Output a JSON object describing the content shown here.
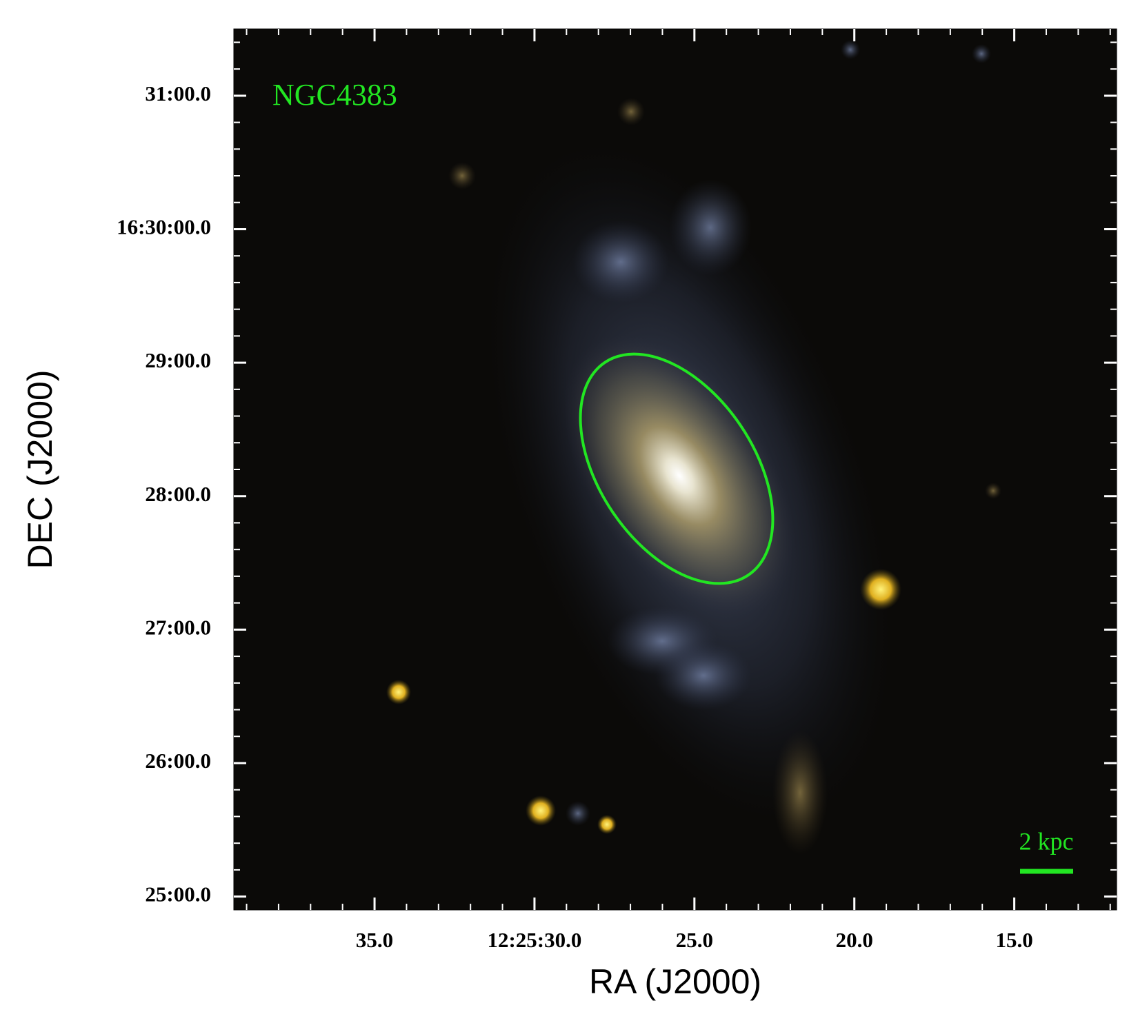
{
  "chart_data": {
    "type": "image",
    "object_label": "NGC4383",
    "scale_bar_label": "2 kpc",
    "xlabel": "RA (J2000)",
    "ylabel": "DEC (J2000)",
    "xlim": [
      39.4,
      11.8
    ],
    "xticks": [
      {
        "value": 35,
        "label": "35.0"
      },
      {
        "value": 30,
        "label": "12:25:30.0"
      },
      {
        "value": 25,
        "label": "25.0"
      },
      {
        "value": 20,
        "label": "20.0"
      },
      {
        "value": 15,
        "label": "15.0"
      }
    ],
    "ylim": [
      24.9,
      31.5
    ],
    "yticks": [
      {
        "value": 25,
        "label": "25:00.0"
      },
      {
        "value": 26,
        "label": "26:00.0"
      },
      {
        "value": 27,
        "label": "27:00.0"
      },
      {
        "value": 28,
        "label": "28:00.0"
      },
      {
        "value": 29,
        "label": "29:00.0"
      },
      {
        "value": 30,
        "label": "16:30:00.0"
      },
      {
        "value": 31,
        "label": "31:00.0"
      }
    ],
    "annotation_color": "#22e622"
  }
}
